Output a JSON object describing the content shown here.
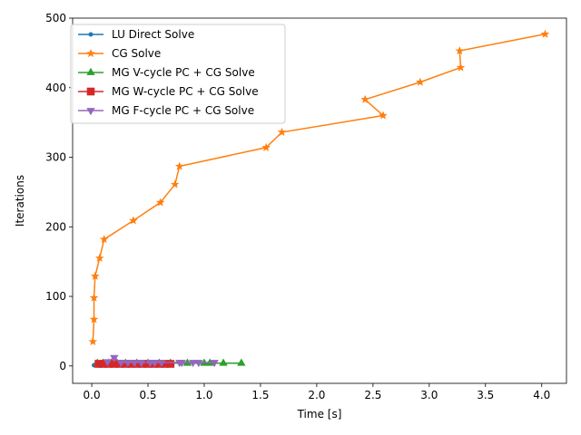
{
  "chart_data": {
    "type": "line",
    "xlabel": "Time [s]",
    "ylabel": "Iterations",
    "xlim": [
      -0.17,
      4.22
    ],
    "ylim": [
      -25,
      500
    ],
    "xticks": [
      0.0,
      0.5,
      1.0,
      1.5,
      2.0,
      2.5,
      3.0,
      3.5,
      4.0
    ],
    "xtick_labels": [
      "0.0",
      "0.5",
      "1.0",
      "1.5",
      "2.0",
      "2.5",
      "3.0",
      "3.5",
      "4.0"
    ],
    "yticks": [
      0,
      100,
      200,
      300,
      400,
      500
    ],
    "ytick_labels": [
      "0",
      "100",
      "200",
      "300",
      "400",
      "500"
    ],
    "grid": false,
    "legend_position": "top-left",
    "series": [
      {
        "name": "LU Direct Solve",
        "color": "#1f77b4",
        "marker": "point",
        "x": [
          0.02,
          0.03,
          0.04,
          0.05,
          0.06,
          0.08,
          0.1,
          0.12,
          0.15,
          0.18,
          0.22,
          0.27,
          0.32,
          0.38,
          0.45
        ],
        "y": [
          1,
          1,
          1,
          1,
          1,
          1,
          1,
          1,
          1,
          1,
          1,
          1,
          1,
          1,
          1
        ]
      },
      {
        "name": "CG Solve",
        "color": "#ff7f0e",
        "marker": "star",
        "x": [
          0.01,
          0.02,
          0.02,
          0.03,
          0.07,
          0.11,
          0.37,
          0.61,
          0.74,
          0.78,
          1.55,
          1.69,
          2.59,
          2.43,
          2.92,
          3.28,
          3.27,
          4.03
        ],
        "y": [
          35,
          67,
          98,
          129,
          155,
          182,
          209,
          235,
          261,
          287,
          314,
          336,
          360,
          383,
          408,
          429,
          453,
          477
        ]
      },
      {
        "name": "MG V-cycle PC + CG Solve",
        "color": "#2ca02c",
        "marker": "triangle-up",
        "x": [
          0.05,
          0.1,
          0.15,
          0.2,
          0.3,
          0.4,
          0.5,
          0.6,
          0.7,
          0.85,
          1.0,
          1.05,
          1.17,
          1.33
        ],
        "y": [
          4,
          4,
          4,
          4,
          4,
          4,
          4,
          4,
          4,
          4,
          4,
          4,
          4,
          4
        ]
      },
      {
        "name": "MG W-cycle PC + CG Solve",
        "color": "#d62728",
        "marker": "square",
        "x": [
          0.06,
          0.1,
          0.15,
          0.2,
          0.25,
          0.3,
          0.35,
          0.4,
          0.45,
          0.5,
          0.55,
          0.6,
          0.65,
          0.7
        ],
        "y": [
          3,
          3,
          3,
          3,
          3,
          3,
          3,
          3,
          3,
          3,
          3,
          3,
          3,
          3
        ]
      },
      {
        "name": "MG F-cycle PC + CG Solve",
        "color": "#9467bd",
        "marker": "triangle-down",
        "x": [
          0.14,
          0.2,
          0.26,
          0.32,
          0.38,
          0.44,
          0.52,
          0.56,
          0.62,
          0.78,
          0.8,
          0.9,
          0.95,
          1.09
        ],
        "y": [
          6,
          12,
          5,
          5,
          5,
          5,
          5,
          5,
          5,
          5,
          5,
          5,
          5,
          5
        ]
      }
    ]
  }
}
